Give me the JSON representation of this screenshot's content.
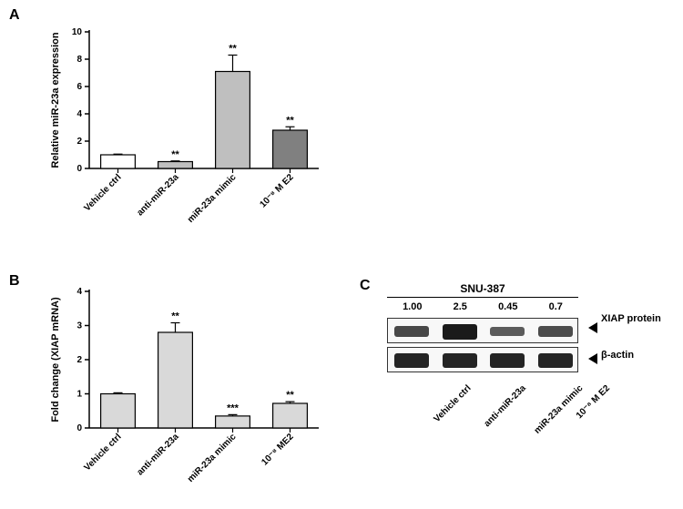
{
  "labels": {
    "panelA": "A",
    "panelB": "B",
    "panelC": "C"
  },
  "chartA": {
    "type": "bar",
    "ylabel": "Relative miR-23a expression",
    "ylim": [
      0,
      10
    ],
    "ytick_step": 2,
    "categories": [
      "Vehicle ctrl",
      "anti-miR-23a",
      "miR-23a mimic",
      "10⁻⁸ M E2"
    ],
    "values": [
      1.0,
      0.5,
      7.1,
      2.8
    ],
    "errors": [
      0.05,
      0.05,
      1.2,
      0.25
    ],
    "significance": [
      "",
      "**",
      "**",
      "**"
    ],
    "bar_colors": [
      "#ffffff",
      "#bfbfbf",
      "#bfbfbf",
      "#808080"
    ],
    "bar_border": "#000000",
    "background_color": "#ffffff",
    "axis_color": "#000000",
    "label_fontsize": 11,
    "tick_fontsize": 10,
    "bar_width": 0.6
  },
  "chartB": {
    "type": "bar",
    "ylabel": "Fold change (XIAP mRNA)",
    "ylim": [
      0,
      4
    ],
    "ytick_step": 1,
    "categories": [
      "Vehicle ctrl",
      "anti-miR-23a",
      "miR-23a mimic",
      "10⁻⁸ ME2"
    ],
    "values": [
      1.0,
      2.8,
      0.35,
      0.72
    ],
    "errors": [
      0.03,
      0.28,
      0.04,
      0.05
    ],
    "significance": [
      "",
      "**",
      "***",
      "**"
    ],
    "bar_colors": [
      "#d9d9d9",
      "#d9d9d9",
      "#d9d9d9",
      "#d9d9d9"
    ],
    "bar_border": "#000000",
    "background_color": "#ffffff",
    "axis_color": "#000000",
    "label_fontsize": 11,
    "tick_fontsize": 10,
    "bar_width": 0.6
  },
  "westernBlot": {
    "title": "SNU-387",
    "quantValues": [
      "1.00",
      "2.5",
      "0.45",
      "0.7"
    ],
    "lanes": [
      "Vehicle ctrl",
      "anti-miR-23a",
      "miR-23a mimic",
      "10⁻⁸ M E2"
    ],
    "proteins": [
      "XIAP protein",
      "β-actin"
    ],
    "xiap_intensities": [
      0.55,
      1.0,
      0.35,
      0.5
    ],
    "actin_intensities": [
      0.9,
      0.9,
      0.9,
      0.9
    ],
    "band_color": "#1a1a1a",
    "background_color": "#f5f5f5",
    "border_color": "#333333"
  }
}
